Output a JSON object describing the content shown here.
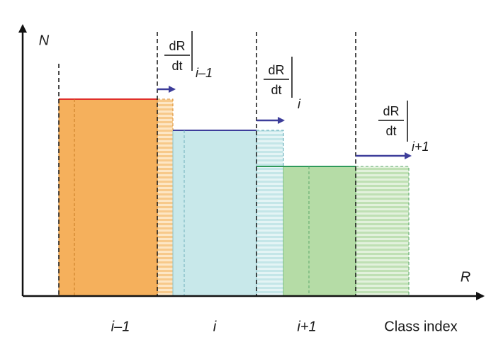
{
  "axes": {
    "y_label": "N",
    "x_label": "R"
  },
  "classes": [
    {
      "label": "i–1",
      "rate": {
        "numerator": "dR",
        "denominator": "dt",
        "subscript": "i–1"
      }
    },
    {
      "label": "i",
      "rate": {
        "numerator": "dR",
        "denominator": "dt",
        "subscript": "i"
      }
    },
    {
      "label": "i+1",
      "rate": {
        "numerator": "dR",
        "denominator": "dt",
        "subscript": "i+1"
      }
    }
  ],
  "x_caption": "Class index"
}
